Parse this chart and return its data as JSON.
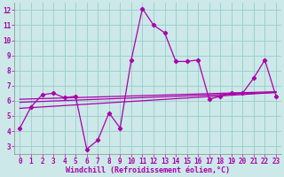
{
  "x": [
    0,
    1,
    2,
    3,
    4,
    5,
    6,
    7,
    8,
    9,
    10,
    11,
    12,
    13,
    14,
    15,
    16,
    17,
    18,
    19,
    20,
    21,
    22,
    23
  ],
  "y_main": [
    4.2,
    5.6,
    6.4,
    6.5,
    6.2,
    6.3,
    2.8,
    3.4,
    5.2,
    4.2,
    8.7,
    12.1,
    11.0,
    10.5,
    8.6,
    8.6,
    8.7,
    6.1,
    6.3,
    6.5,
    6.5,
    7.5,
    8.7,
    6.3
  ],
  "regression_lines": [
    {
      "x0": 0,
      "y0": 5.5,
      "x1": 23,
      "y1": 6.55
    },
    {
      "x0": 0,
      "y0": 5.9,
      "x1": 23,
      "y1": 6.55
    },
    {
      "x0": 0,
      "y0": 6.1,
      "x1": 23,
      "y1": 6.6
    }
  ],
  "line_color": "#aa00aa",
  "bg_color": "#cce8e8",
  "grid_color": "#99cccc",
  "xlabel": "Windchill (Refroidissement éolien,°C)",
  "ylim": [
    2.5,
    12.5
  ],
  "xlim": [
    -0.5,
    23.5
  ],
  "yticks": [
    3,
    4,
    5,
    6,
    7,
    8,
    9,
    10,
    11,
    12
  ],
  "xticks": [
    0,
    1,
    2,
    3,
    4,
    5,
    6,
    7,
    8,
    9,
    10,
    11,
    12,
    13,
    14,
    15,
    16,
    17,
    18,
    19,
    20,
    21,
    22,
    23
  ],
  "tick_fontsize": 5.5,
  "xlabel_fontsize": 6.0
}
